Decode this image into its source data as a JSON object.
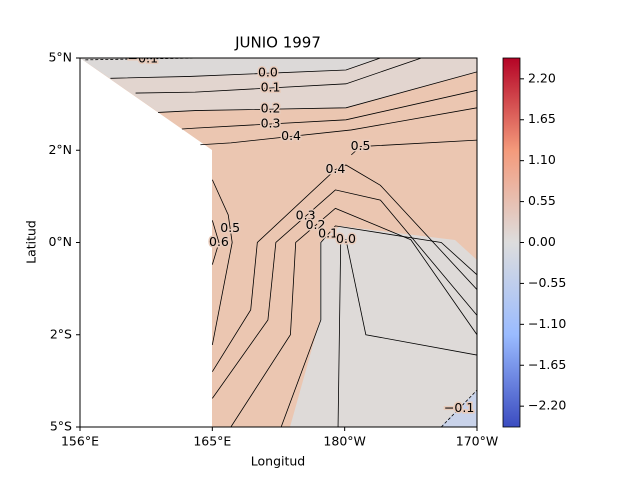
{
  "chart_data": {
    "type": "contour",
    "title": "JUNIO 1997",
    "x_label": "Longitud",
    "y_label": "Latitud",
    "x_categories": [
      "156°E",
      "165°E",
      "180°W",
      "170°W"
    ],
    "y_categories": [
      "5°S",
      "2°S",
      "0°N",
      "2°N",
      "5°N"
    ],
    "line_color": "#000000",
    "contours": [
      {
        "level": -0.1,
        "label": "−0.1",
        "x": [
          0.04,
          0.91
        ],
        "y": [
          3.98,
          4
        ]
      },
      {
        "level": 0,
        "label": "0.0",
        "x": [
          0.23,
          0.83,
          2.01,
          2.27
        ],
        "y": [
          3.78,
          3.8,
          3.87,
          4
        ]
      },
      {
        "level": 0.1,
        "label": "0.1",
        "x": [
          0.42,
          0.87,
          2.01,
          2.58
        ],
        "y": [
          3.62,
          3.63,
          3.72,
          4
        ]
      },
      {
        "level": 0.2,
        "label": "0.2",
        "x": [
          0.59,
          0.87,
          2.01,
          3
        ],
        "y": [
          3.41,
          3.43,
          3.46,
          3.85
        ]
      },
      {
        "level": 0.3,
        "label": "0.3",
        "x": [
          0.77,
          0.87,
          2.01,
          3
        ],
        "y": [
          3.23,
          3.24,
          3.33,
          3.65
        ]
      },
      {
        "level": 0.4,
        "label": "0.4",
        "x": [
          0.91,
          1.14,
          2.05,
          3
        ],
        "y": [
          3.06,
          3.08,
          3.22,
          3.46
        ]
      },
      {
        "level": 0.5,
        "label": "0.5",
        "x": [
          2.05,
          2.12,
          3
        ],
        "y": [
          2.95,
          3.04,
          3.11
        ]
      },
      {
        "level": 0.4,
        "label": "0.4",
        "x": [
          1,
          1.29,
          1.34,
          1.93,
          2.01,
          2.27,
          3
        ],
        "y": [
          0.6,
          1.27,
          2,
          2.79,
          2.84,
          2.62,
          1.49
        ]
      },
      {
        "level": 0.3,
        "label": "0.3",
        "x": [
          1,
          1.42,
          1.48,
          1.93,
          2.27,
          3
        ],
        "y": [
          0.31,
          1.16,
          2,
          2.57,
          2.46,
          1.21
        ]
      },
      {
        "level": 0.2,
        "label": "0.2",
        "x": [
          1.14,
          1.59,
          1.63,
          1.93,
          2.5,
          3
        ],
        "y": [
          0,
          1,
          2,
          2.37,
          2.03,
          1
        ]
      },
      {
        "level": 0.1,
        "label": "0.1",
        "x": [
          1.52,
          1.82,
          1.82,
          1.93,
          2.73,
          3
        ],
        "y": [
          0,
          1.16,
          2,
          2.18,
          2,
          1.65
        ]
      },
      {
        "level": 0,
        "label": "0.0",
        "x": [
          1.95,
          1.97,
          2.01,
          2.16,
          3
        ],
        "y": [
          0,
          2,
          2.03,
          1,
          0.78
        ]
      },
      {
        "level": 0.5,
        "label": "0.5",
        "x": [
          1,
          1.15,
          1.12,
          1
        ],
        "y": [
          0.89,
          2,
          2.3,
          2.68
        ]
      },
      {
        "level": 0.6,
        "label": "0.6",
        "x": [
          1,
          1.05,
          1
        ],
        "y": [
          1.76,
          2,
          2.24
        ]
      },
      {
        "level": -0.1,
        "label": "−0.1",
        "x": [
          2.73,
          3
        ],
        "y": [
          0,
          0.4
        ]
      }
    ],
    "colorbar": {
      "clim": [
        -2.48,
        2.48
      ],
      "colormap": [
        "#3b4cc0",
        "#9abbff",
        "#dddddd",
        "#f49a7b",
        "#b40426"
      ],
      "ticks": [
        {
          "value": 2.2,
          "label": "2.20"
        },
        {
          "value": 1.65,
          "label": "1.65"
        },
        {
          "value": 1.1,
          "label": "1.10"
        },
        {
          "value": 0.55,
          "label": "0.55"
        },
        {
          "value": 0,
          "label": "0.00"
        },
        {
          "value": -0.55,
          "label": "−0.55"
        },
        {
          "value": -1.1,
          "label": "−1.10"
        },
        {
          "value": -1.65,
          "label": "−1.65"
        },
        {
          "value": -2.2,
          "label": "−2.20"
        }
      ]
    }
  }
}
